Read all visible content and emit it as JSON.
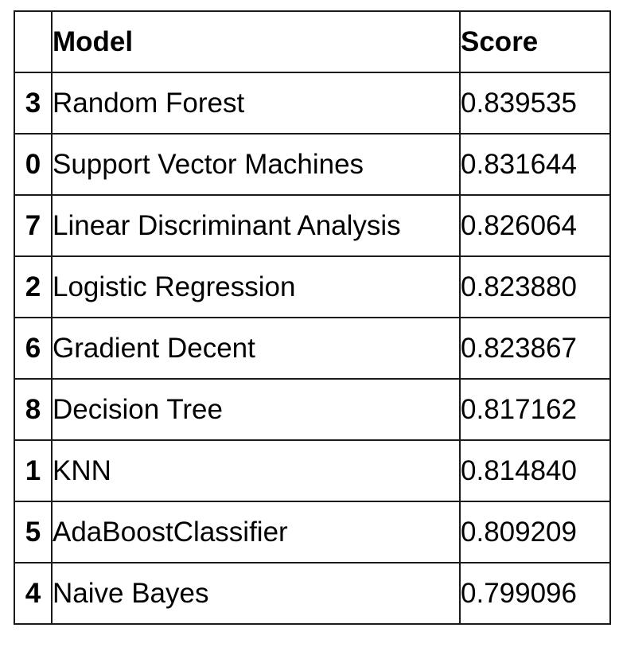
{
  "table": {
    "columns": {
      "index": "",
      "model": "Model",
      "score": "Score"
    },
    "rows": [
      {
        "index": "3",
        "model": "Random Forest",
        "score": "0.839535"
      },
      {
        "index": "0",
        "model": "Support Vector Machines",
        "score": "0.831644"
      },
      {
        "index": "7",
        "model": "Linear Discriminant Analysis",
        "score": "0.826064"
      },
      {
        "index": "2",
        "model": "Logistic Regression",
        "score": "0.823880"
      },
      {
        "index": "6",
        "model": "Gradient Decent",
        "score": "0.823867"
      },
      {
        "index": "8",
        "model": "Decision Tree",
        "score": "0.817162"
      },
      {
        "index": "1",
        "model": "KNN",
        "score": "0.814840"
      },
      {
        "index": "5",
        "model": "AdaBoostClassifier",
        "score": "0.809209"
      },
      {
        "index": "4",
        "model": "Naive Bayes",
        "score": "0.799096"
      }
    ]
  }
}
